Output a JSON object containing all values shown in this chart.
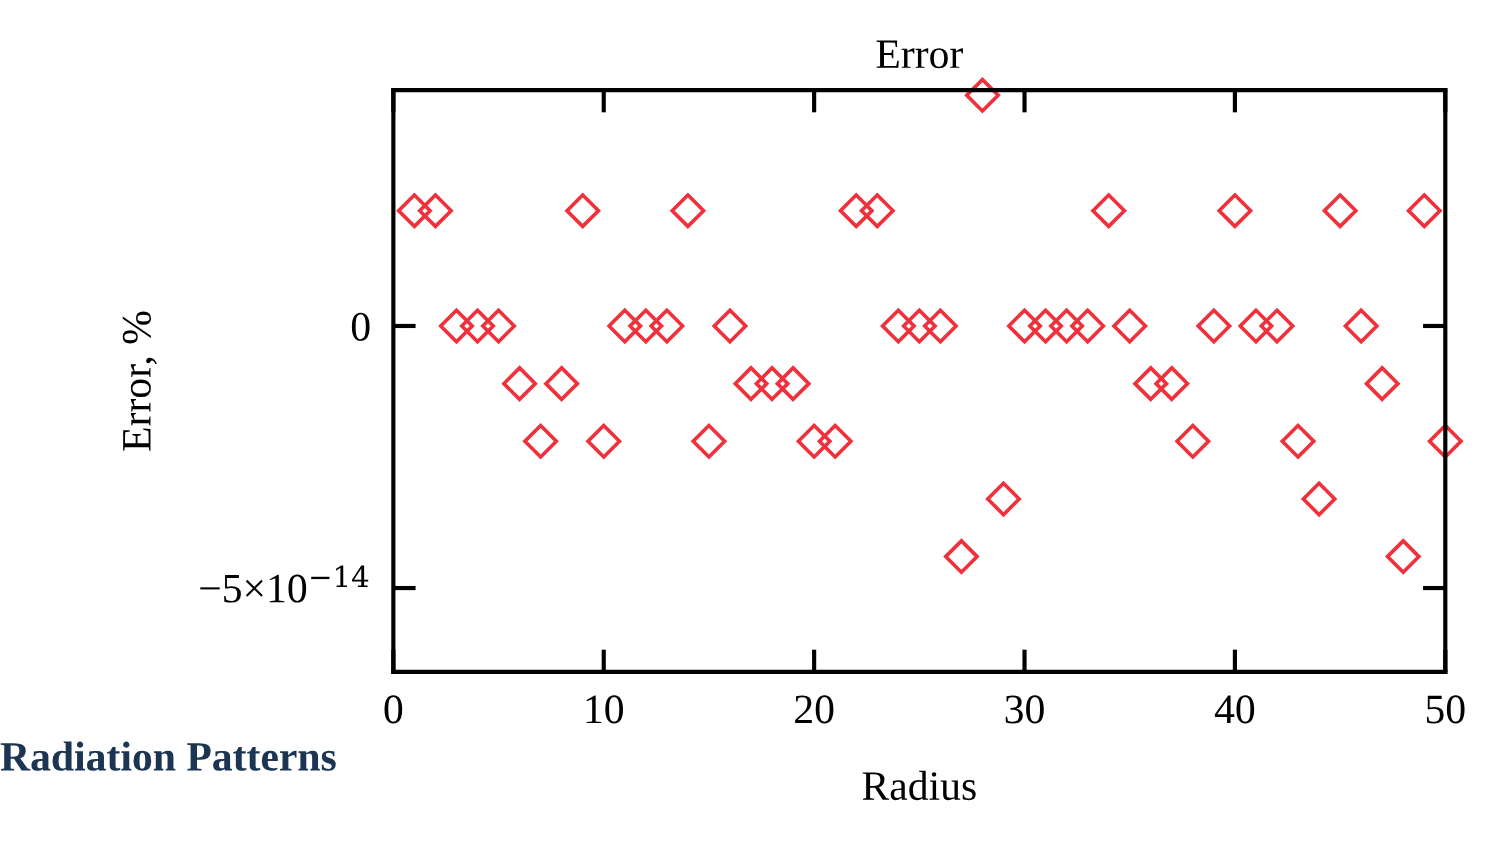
{
  "chart_data": {
    "type": "scatter",
    "title": "Error",
    "xlabel": "Radius",
    "ylabel": "Error, %",
    "x": [
      1,
      2,
      3,
      4,
      5,
      6,
      7,
      8,
      9,
      10,
      11,
      12,
      13,
      14,
      15,
      16,
      17,
      18,
      19,
      20,
      21,
      22,
      23,
      24,
      25,
      26,
      27,
      28,
      29,
      30,
      31,
      32,
      33,
      34,
      35,
      36,
      37,
      38,
      39,
      40,
      41,
      42,
      43,
      44,
      45,
      46,
      47,
      48,
      49,
      50
    ],
    "series": [
      {
        "color": "#f0303a",
        "values": [
          2.2e-14,
          2.2e-14,
          0,
          0,
          0,
          -1.1e-14,
          -2.2e-14,
          -1.1e-14,
          2.2e-14,
          -2.2e-14,
          0,
          0,
          0,
          2.2e-14,
          -2.2e-14,
          0,
          -1.1e-14,
          -1.1e-14,
          -1.1e-14,
          -2.2e-14,
          -2.2e-14,
          2.2e-14,
          2.2e-14,
          0,
          0,
          0,
          -4.4e-14,
          4.4e-14,
          -3.3e-14,
          0,
          0,
          0,
          0,
          2.2e-14,
          0,
          -1.1e-14,
          -1.1e-14,
          -2.2e-14,
          0,
          2.2e-14,
          0,
          0,
          -2.2e-14,
          -3.3e-14,
          2.2e-14,
          0,
          -1.1e-14,
          -4.4e-14,
          2.2e-14,
          -2.2e-14
        ]
      }
    ],
    "xlim": [
      0,
      50
    ],
    "xticks": [
      0,
      10,
      20,
      30,
      40,
      50
    ],
    "ylim": [
      -6.6e-14,
      4.5e-14
    ],
    "yticks": [
      0,
      {
        "value": -5e-14,
        "label": "−5×10$^{−14}$"
      }
    ],
    "marker": "diamond",
    "grid": false,
    "legend": false,
    "annotations": [
      "Radiation Patterns"
    ]
  }
}
